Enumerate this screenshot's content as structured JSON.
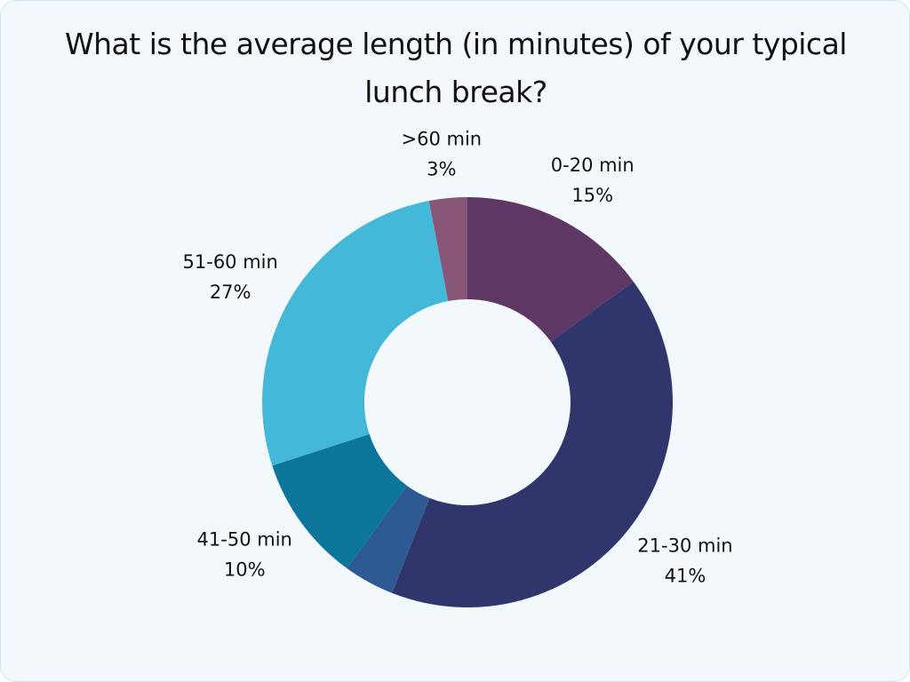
{
  "chart_data": {
    "type": "pie",
    "variant": "donut",
    "title": "What is the average length (in minutes) of your typical lunch break?",
    "slices": [
      {
        "label": "0-20 min",
        "value": 15,
        "value_label": "15%",
        "color": "#5e3764"
      },
      {
        "label": "21-30 min",
        "value": 41,
        "value_label": "41%",
        "color": "#30356b"
      },
      {
        "label": "",
        "value": 4,
        "value_label": "",
        "color": "#2d5a91"
      },
      {
        "label": "41-50 min",
        "value": 10,
        "value_label": "10%",
        "color": "#0c769a"
      },
      {
        "label": "51-60 min",
        "value": 27,
        "value_label": "27%",
        "color": "#43b8d8"
      },
      {
        "label": ">60 min",
        "value": 3,
        "value_label": "3%",
        "color": "#875677"
      }
    ],
    "start_angle_deg": 0,
    "direction": "clockwise"
  }
}
